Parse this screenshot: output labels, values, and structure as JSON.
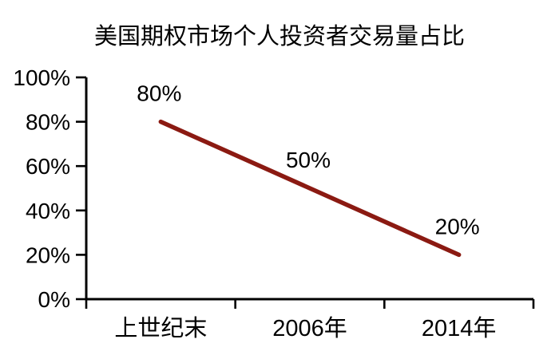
{
  "chart_data": {
    "type": "line",
    "title": "美国期权市场个人投资者交易量占比",
    "categories": [
      "上世纪末",
      "2006年",
      "2014年"
    ],
    "values": [
      80,
      50,
      20
    ],
    "data_labels": [
      "80%",
      "50%",
      "20%"
    ],
    "y_ticks": [
      "0%",
      "20%",
      "40%",
      "60%",
      "80%",
      "100%"
    ],
    "ylim": [
      0,
      100
    ],
    "xlabel": "",
    "ylabel": "",
    "grid": false,
    "legend": false,
    "colors": {
      "line": "#8B1A12",
      "axis": "#000000",
      "text": "#000000",
      "background": "#FFFFFF"
    }
  }
}
